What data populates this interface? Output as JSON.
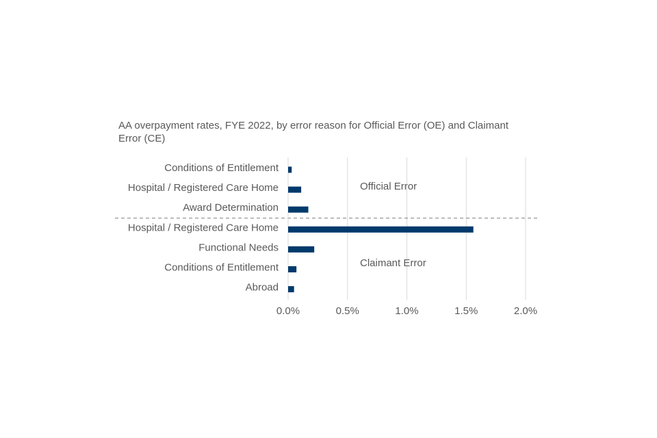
{
  "chart_data": {
    "type": "bar",
    "orientation": "horizontal",
    "title": "AA overpayment rates, FYE 2022, by error reason for Official Error (OE) and Claimant Error (CE)",
    "xlabel": "",
    "ylabel": "",
    "xlim": [
      0,
      0.021
    ],
    "x_ticks": [
      0,
      0.005,
      0.01,
      0.015,
      0.02
    ],
    "x_tick_labels": [
      "0.0%",
      "0.5%",
      "1.0%",
      "1.5%",
      "2.0%"
    ],
    "grid": "vertical",
    "bar_color": "#003a6c",
    "groups": [
      {
        "name": "Official Error",
        "categories": [
          "Conditions of Entitlement",
          "Hospital / Registered Care Home",
          "Award Determination"
        ],
        "values": [
          0.0003,
          0.0011,
          0.0017
        ]
      },
      {
        "name": "Claimant Error",
        "categories": [
          "Hospital / Registered Care Home",
          "Functional Needs",
          "Conditions of Entitlement",
          "Abroad"
        ],
        "values": [
          0.0156,
          0.0022,
          0.0007,
          0.0005
        ]
      }
    ]
  }
}
